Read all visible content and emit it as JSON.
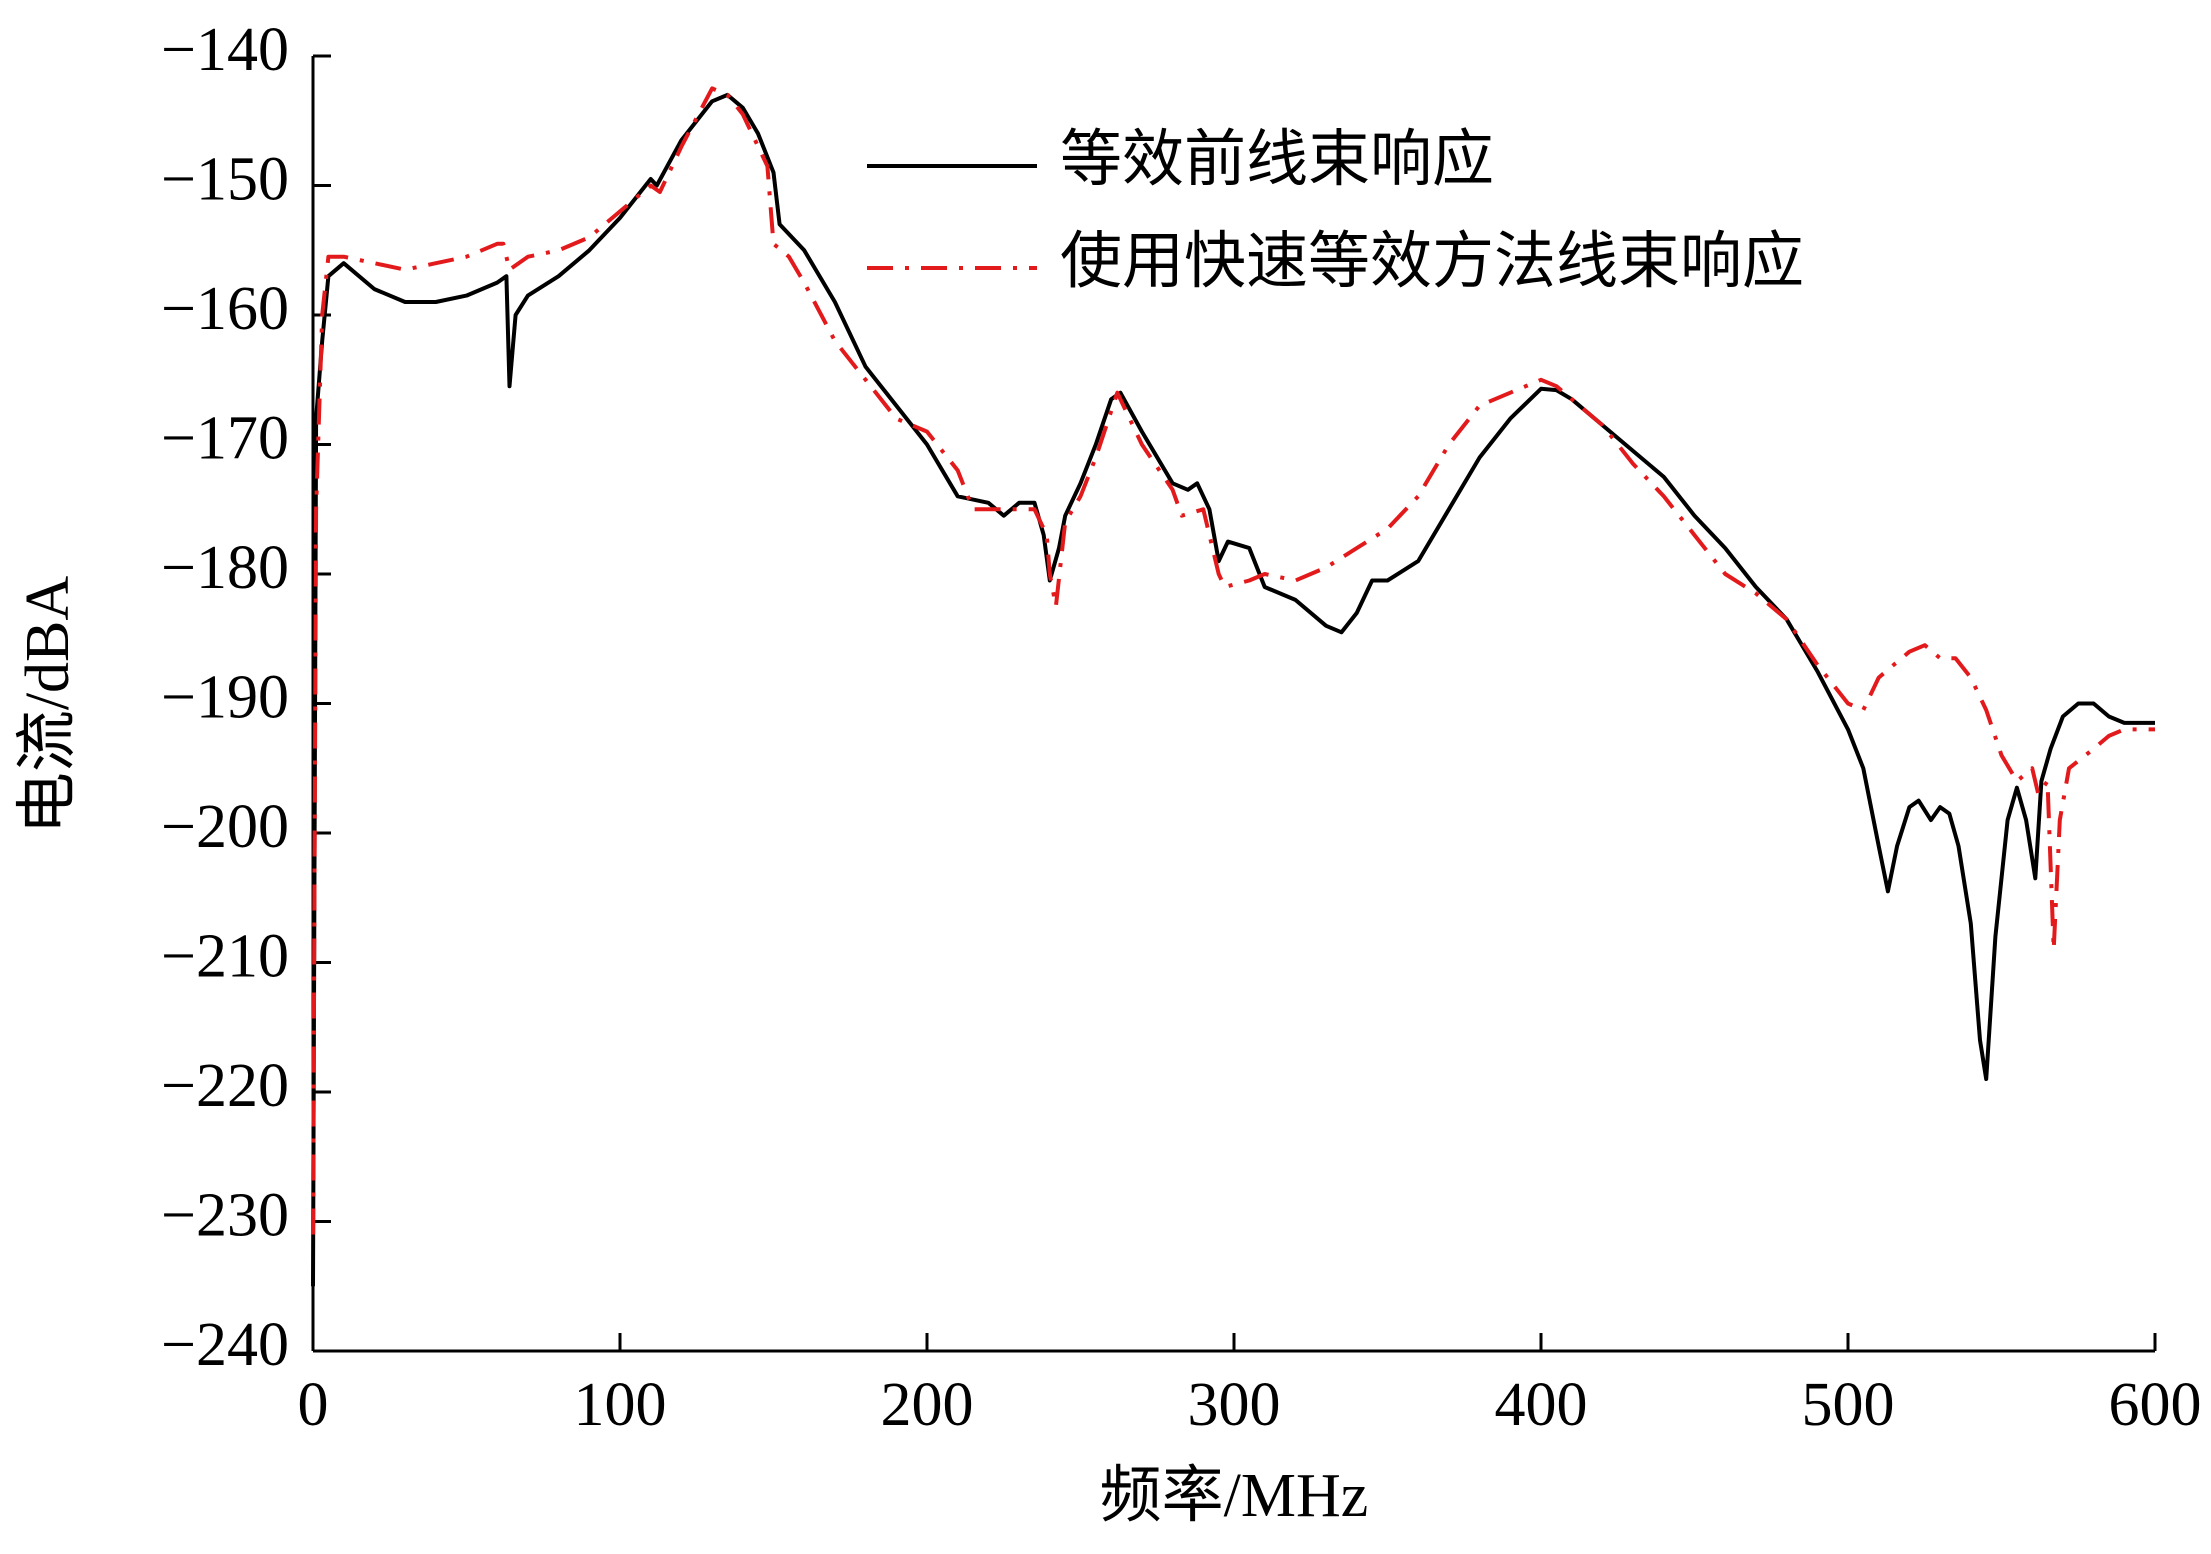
{
  "chart_data": {
    "type": "line",
    "xlabel": "频率/MHz",
    "ylabel": "电流/dBA",
    "xlim": [
      0,
      600
    ],
    "ylim": [
      -240,
      -140
    ],
    "xticks": [
      0,
      100,
      200,
      300,
      400,
      500,
      600
    ],
    "yticks": [
      {
        "value": -240,
        "label": "−240"
      },
      {
        "value": -230,
        "label": "−230"
      },
      {
        "value": -220,
        "label": "−220"
      },
      {
        "value": -210,
        "label": "−210"
      },
      {
        "value": -200,
        "label": "−200"
      },
      {
        "value": -190,
        "label": "−190"
      },
      {
        "value": -180,
        "label": "−180"
      },
      {
        "value": -170,
        "label": "−170"
      },
      {
        "value": -160,
        "label": "−160"
      },
      {
        "value": -150,
        "label": "−150"
      },
      {
        "value": -140,
        "label": "−140"
      }
    ],
    "grid": false,
    "legend_loc": "upper right",
    "series": [
      {
        "name": "等效前线束响应",
        "color": "#000000",
        "dash": "solid",
        "x": [
          0,
          1,
          3,
          5,
          10,
          20,
          30,
          40,
          50,
          60,
          63,
          64,
          66,
          70,
          80,
          90,
          100,
          110,
          112,
          120,
          130,
          135,
          140,
          145,
          150,
          152,
          160,
          170,
          180,
          190,
          200,
          210,
          220,
          225,
          230,
          235,
          238,
          240,
          243,
          245,
          250,
          255,
          260,
          263,
          270,
          280,
          285,
          288,
          292,
          295,
          298,
          305,
          310,
          320,
          330,
          335,
          340,
          345,
          350,
          360,
          370,
          380,
          390,
          400,
          405,
          410,
          420,
          430,
          440,
          450,
          460,
          470,
          480,
          490,
          500,
          505,
          510,
          513,
          516,
          520,
          523,
          527,
          530,
          533,
          536,
          540,
          543,
          545,
          548,
          552,
          555,
          558,
          561,
          563,
          566,
          570,
          575,
          580,
          585,
          590,
          595,
          600
        ],
        "values": [
          -235,
          -168,
          -162,
          -157,
          -156,
          -158,
          -159,
          -159,
          -158.5,
          -157.5,
          -157,
          -165.5,
          -160,
          -158.5,
          -157,
          -155,
          -152.5,
          -149.5,
          -150,
          -146.5,
          -143.5,
          -143,
          -144,
          -146,
          -149,
          -153,
          -155,
          -159,
          -164,
          -167,
          -170,
          -174,
          -174.5,
          -175.5,
          -174.5,
          -174.5,
          -177,
          -180.5,
          -178,
          -175.5,
          -173,
          -170,
          -166.5,
          -166,
          -169,
          -173,
          -173.5,
          -173,
          -175,
          -179,
          -177.5,
          -178,
          -181,
          -182,
          -184,
          -184.5,
          -183,
          -180.5,
          -180.5,
          -179,
          -175,
          -171,
          -168,
          -165.7,
          -165.8,
          -166.5,
          -168.5,
          -170.5,
          -172.5,
          -175.5,
          -178,
          -181,
          -183.5,
          -187.5,
          -192,
          -195,
          -201,
          -204.5,
          -201,
          -198,
          -197.5,
          -199,
          -198,
          -198.5,
          -201,
          -207,
          -216,
          -219,
          -208,
          -199,
          -196.5,
          -199,
          -203.5,
          -196,
          -193.5,
          -191,
          -190,
          -190,
          -191,
          -191.5,
          -191.5,
          -191.5
        ]
      },
      {
        "name": "使用快速等效方法线束响应",
        "color": "#e31a1c",
        "dash": "dashdot",
        "x": [
          0,
          1,
          3,
          5,
          10,
          20,
          30,
          40,
          50,
          60,
          62,
          64,
          70,
          80,
          90,
          100,
          110,
          113,
          120,
          130,
          135,
          140,
          148,
          150,
          155,
          160,
          170,
          180,
          190,
          200,
          210,
          215,
          225,
          235,
          239,
          240,
          242,
          245,
          250,
          255,
          262,
          270,
          280,
          283,
          290,
          295,
          297,
          305,
          310,
          320,
          330,
          340,
          350,
          360,
          370,
          380,
          390,
          400,
          405,
          420,
          430,
          440,
          450,
          460,
          470,
          480,
          490,
          500,
          505,
          510,
          515,
          520,
          525,
          530,
          535,
          540,
          545,
          550,
          555,
          560,
          562,
          565,
          567,
          569,
          572,
          580,
          585,
          590,
          600
        ],
        "values": [
          -231,
          -175,
          -160,
          -155.5,
          -155.5,
          -156,
          -156.5,
          -156,
          -155.5,
          -154.5,
          -154.5,
          -156.5,
          -155.5,
          -155,
          -154,
          -152,
          -150,
          -150.5,
          -147,
          -142.5,
          -143,
          -144.5,
          -148.5,
          -154.5,
          -155.5,
          -157.5,
          -162,
          -165,
          -168,
          -169,
          -172,
          -175,
          -175,
          -175,
          -177,
          -180,
          -182.5,
          -176,
          -174,
          -171,
          -166,
          -170,
          -173.5,
          -175.5,
          -175,
          -180,
          -181,
          -180.5,
          -180,
          -180.5,
          -179.5,
          -178,
          -176.5,
          -174,
          -170,
          -167,
          -166,
          -165,
          -165.5,
          -168.5,
          -171.5,
          -174,
          -177,
          -180,
          -181.5,
          -183.5,
          -187,
          -190,
          -190.5,
          -188,
          -187,
          -186,
          -185.5,
          -186.5,
          -186.5,
          -188,
          -190.5,
          -194,
          -196,
          -195,
          -197,
          -196,
          -209,
          -199,
          -195,
          -193.5,
          -192.5,
          -192,
          -192
        ]
      }
    ]
  }
}
